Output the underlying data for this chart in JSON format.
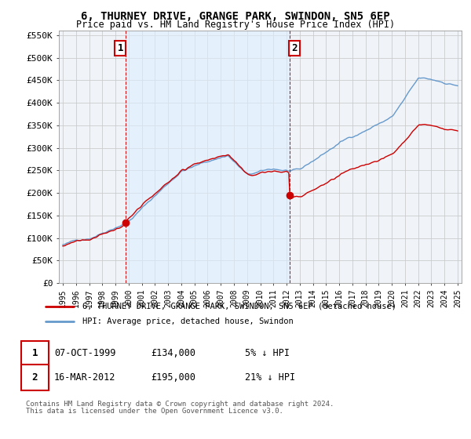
{
  "title": "6, THURNEY DRIVE, GRANGE PARK, SWINDON, SN5 6EP",
  "subtitle": "Price paid vs. HM Land Registry's House Price Index (HPI)",
  "legend_line1": "6, THURNEY DRIVE, GRANGE PARK, SWINDON, SN5 6EP (detached house)",
  "legend_line2": "HPI: Average price, detached house, Swindon",
  "footer1": "Contains HM Land Registry data © Crown copyright and database right 2024.",
  "footer2": "This data is licensed under the Open Government Licence v3.0.",
  "sale1_label": "1",
  "sale1_date": "07-OCT-1999",
  "sale1_price": "£134,000",
  "sale1_hpi": "5% ↓ HPI",
  "sale1_year": 1999.77,
  "sale1_value": 134000,
  "sale2_label": "2",
  "sale2_date": "16-MAR-2012",
  "sale2_price": "£195,000",
  "sale2_hpi": "21% ↓ HPI",
  "sale2_year": 2012.21,
  "sale2_value": 195000,
  "ylim_max": 560000,
  "xlim_start": 1994.7,
  "xlim_end": 2025.3,
  "red_color": "#cc0000",
  "blue_color": "#6699cc",
  "shade_color": "#ddeeff",
  "background_color": "#ffffff",
  "grid_color": "#cccccc",
  "anno_box_color": "#cc0000"
}
